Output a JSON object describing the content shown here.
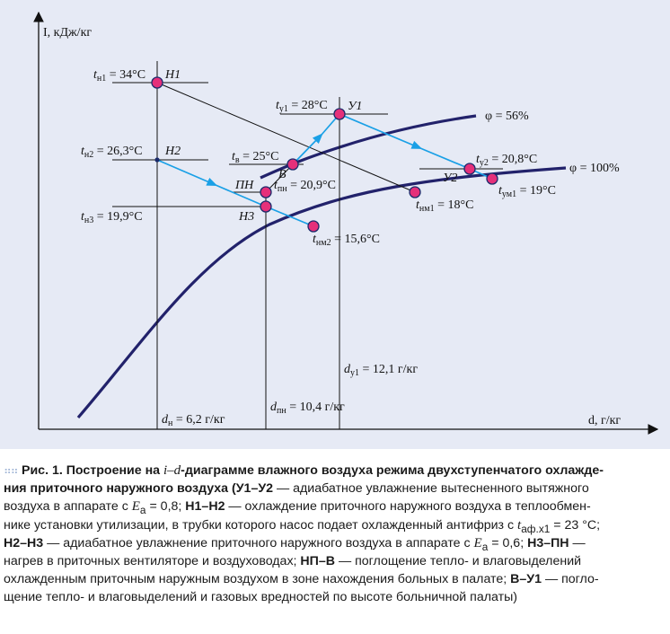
{
  "diagram": {
    "axis_y_label": "I, кДж/кг",
    "axis_x_label": "d, г/кг",
    "curve_labels": {
      "phi56": "φ = 56%",
      "phi100": "φ = 100%"
    },
    "points": {
      "H1": "Н1",
      "H2": "Н2",
      "H3": "Н3",
      "PN": "ПН",
      "V": "В",
      "U1": "У1",
      "U2": "У2"
    },
    "temps": {
      "tn1": [
        "t",
        "н1",
        " = 34°С"
      ],
      "tn2": [
        "t",
        "н2",
        " = 26,3°С"
      ],
      "tn3": [
        "t",
        "н3",
        " = 19,9°С"
      ],
      "ty1": [
        "t",
        "у1",
        " = 28°С"
      ],
      "tv": [
        "t",
        "в",
        " = 25°С"
      ],
      "tpn": [
        "t",
        "пн",
        " = 20,9°С"
      ],
      "ty2": [
        "t",
        "у2",
        " = 20,8°С"
      ],
      "tym1": [
        "t",
        "ум1",
        " = 19°С"
      ],
      "tnm1": [
        "t",
        "нм1",
        " = 18°С"
      ],
      "tnm2": [
        "t",
        "нм2",
        " = 15,6°С"
      ]
    },
    "moist": {
      "dn": [
        "d",
        "н",
        " = 6,2 г/кг"
      ],
      "dpn": [
        "d",
        "пн",
        " = 10,4 г/кг"
      ],
      "dy1": [
        "d",
        "у1",
        " = 12,1 г/кг"
      ]
    }
  },
  "caption": {
    "lines": [
      {
        "bold": "Рис. 1. Построение на ",
        "i": "i–d",
        "bold2": "-диаграмме влажного воздуха режима двухступенчатого охлажде-"
      },
      {
        "bold": "ния приточного наружного воздуха (У1–У2",
        "text": " — адиабатное увлажнение вытесненного вытяжного"
      },
      {
        "text": "воздуха в аппарате с ",
        "i": "E",
        "sub": "а",
        "text2": " = 0,8; ",
        "bold": "Н1–Н2",
        "text3": " — охлаждение приточного наружного воздуха в теплообмен-"
      },
      {
        "text": "нике установки утилизации, в трубки которого насос подает охлажденный антифриз с ",
        "i": "t",
        "sub": "аф.х1",
        "text2": " = 23 °С;"
      },
      {
        "bold": "Н2–Н3",
        "text": " — адиабатное увлажнение приточного наружного воздуха в аппарате с ",
        "i": "E",
        "sub": "а",
        "text2": " = 0,6; ",
        "bold2": "Н3–ПН",
        "text3": " —"
      },
      {
        "text": "нагрев в приточных вентиляторе и воздуховодах; ",
        "bold": "НП–В",
        "text2": " — поглощение тепло- и влаговыделений"
      },
      {
        "text": "охлажденным приточным наружным воздухом в зоне нахождения больных в палате; ",
        "bold": "В–У1",
        "text2": " — погло-"
      },
      {
        "text": "щение тепло- и влаговыделений и газовых вредностей по высоте больничной палаты)"
      }
    ]
  }
}
